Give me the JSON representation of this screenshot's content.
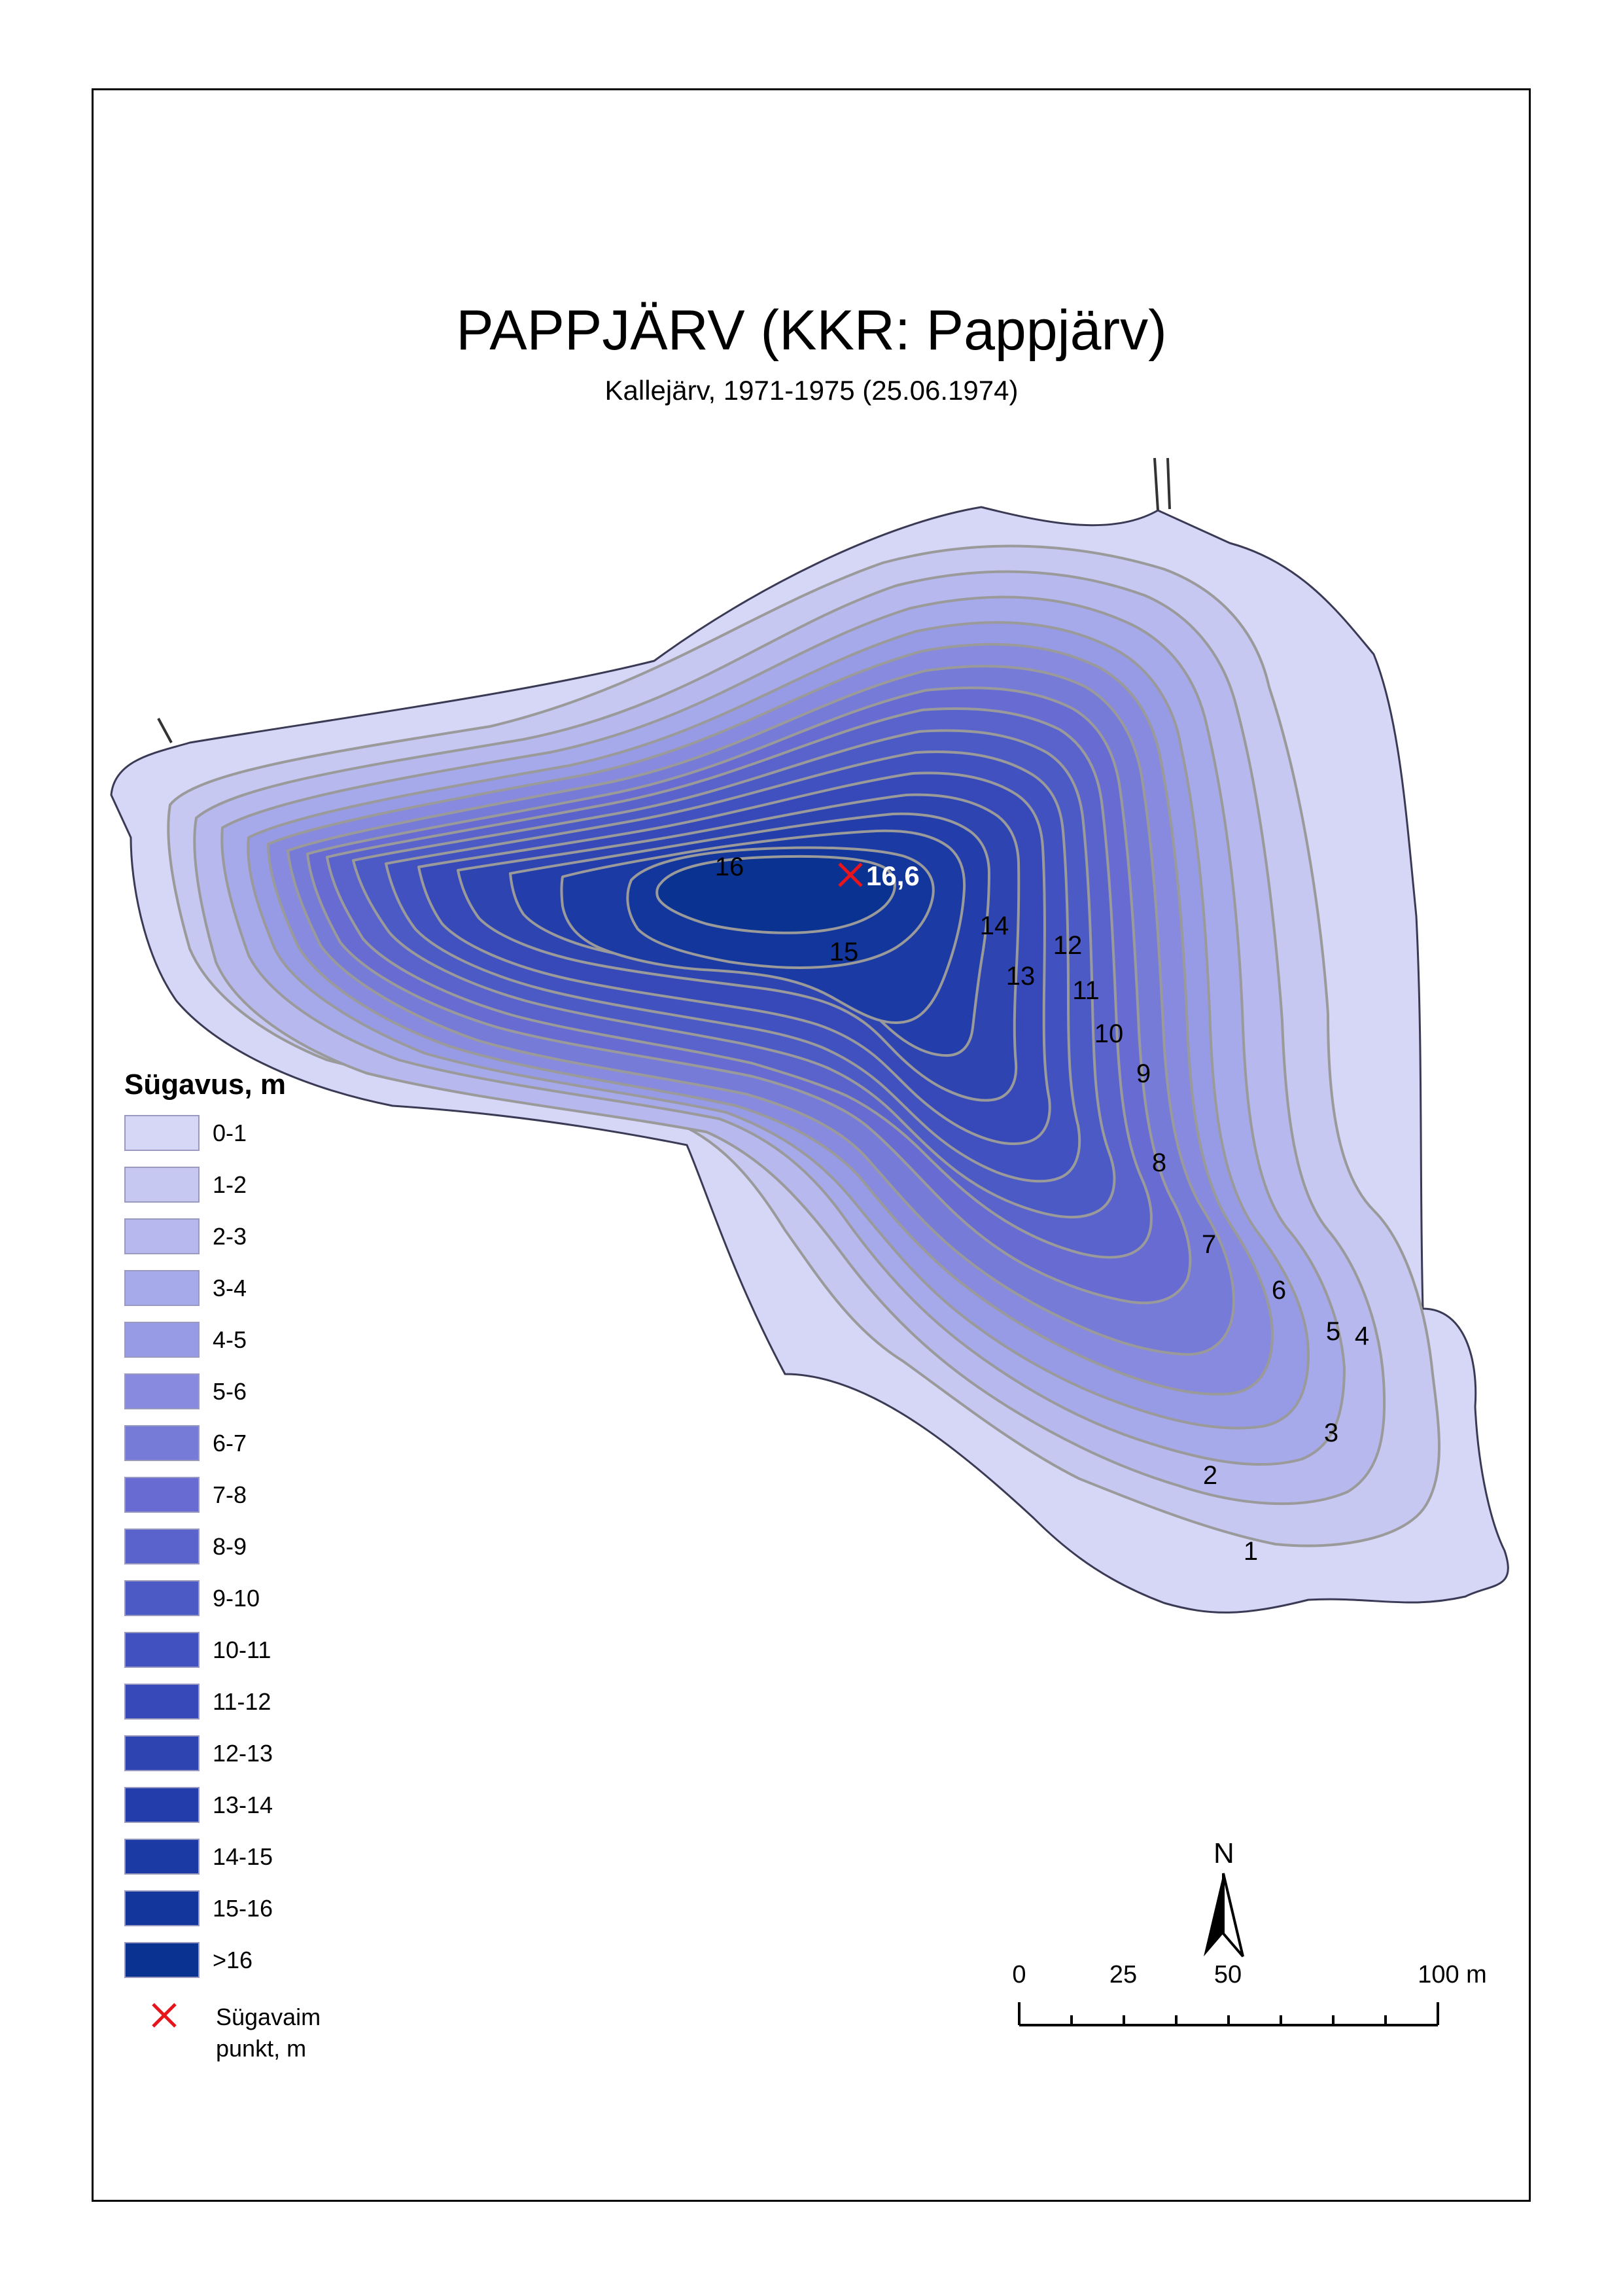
{
  "header": {
    "title": "PAPPJÄRV (KKR: Pappjärv)",
    "subtitle": "Kallejärv, 1971-1975 (25.06.1974)"
  },
  "legend": {
    "title": "Sügavus, m",
    "classes": [
      {
        "label": "0-1",
        "color": "#d6d7f7"
      },
      {
        "label": "1-2",
        "color": "#c7c8f2"
      },
      {
        "label": "2-3",
        "color": "#b7b9ee"
      },
      {
        "label": "3-4",
        "color": "#a7aaea"
      },
      {
        "label": "4-5",
        "color": "#979ae4"
      },
      {
        "label": "5-6",
        "color": "#878ade"
      },
      {
        "label": "6-7",
        "color": "#777bd8"
      },
      {
        "label": "7-8",
        "color": "#686cd2"
      },
      {
        "label": "8-9",
        "color": "#5a63cc"
      },
      {
        "label": "9-10",
        "color": "#4c5ac6"
      },
      {
        "label": "10-11",
        "color": "#4151bf"
      },
      {
        "label": "11-12",
        "color": "#3749b8"
      },
      {
        "label": "12-13",
        "color": "#2d44b1"
      },
      {
        "label": "13-14",
        "color": "#233eaa"
      },
      {
        "label": "14-15",
        "color": "#1b3aa3"
      },
      {
        "label": "15-16",
        "color": "#12369b"
      },
      {
        "label": ">16",
        "color": "#0a3290"
      }
    ],
    "deepest_point_label": "Sügavaim punkt, m"
  },
  "map": {
    "deepest_point_value": "16,6",
    "deepest_point_color": "#e8141c",
    "contour_labels": [
      "16",
      "15",
      "14",
      "13",
      "12",
      "11",
      "10",
      "9",
      "8",
      "7",
      "6",
      "5",
      "4",
      "3",
      "2",
      "1"
    ]
  },
  "north_arrow": {
    "label": "N"
  },
  "scale_bar": {
    "labels": [
      "0",
      "25",
      "50",
      "100 m"
    ]
  }
}
